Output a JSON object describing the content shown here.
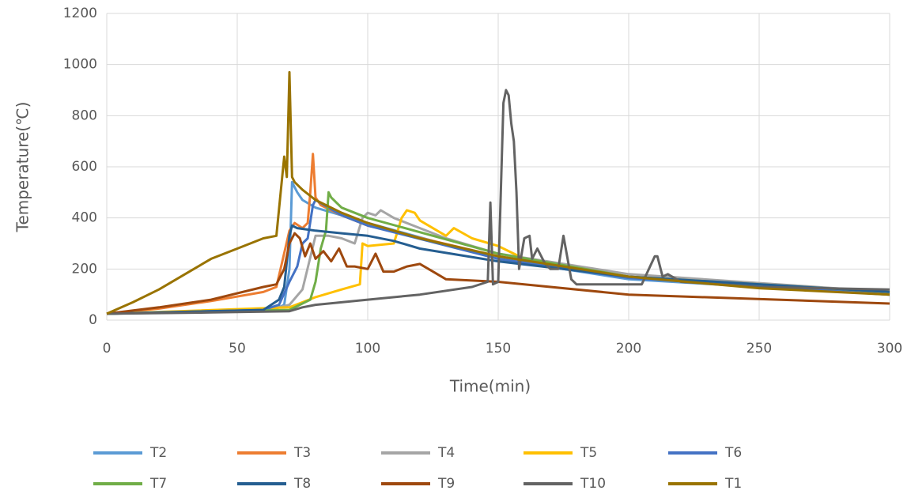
{
  "chart_data": {
    "type": "line",
    "x_label": "Time(min)",
    "y_label": "Temperature(℃)",
    "xlim": [
      0,
      300
    ],
    "xticks": [
      0,
      50,
      100,
      150,
      200,
      250,
      300
    ],
    "ylim": [
      0,
      1200
    ],
    "yticks": [
      0,
      200,
      400,
      600,
      800,
      1000,
      1200
    ],
    "grid": true,
    "legend": "bottom",
    "series": [
      {
        "name": "T2",
        "color": "#5b9bd5",
        "x": [
          0,
          50,
          65,
          68,
          70,
          71,
          73,
          75,
          80,
          100,
          150,
          200,
          300
        ],
        "values": [
          25,
          35,
          45,
          60,
          200,
          540,
          500,
          470,
          440,
          380,
          240,
          160,
          100
        ]
      },
      {
        "name": "T3",
        "color": "#ed7d31",
        "x": [
          0,
          20,
          40,
          60,
          65,
          70,
          72,
          75,
          77,
          78,
          79,
          80,
          82,
          90,
          100,
          150,
          200,
          300
        ],
        "values": [
          25,
          45,
          75,
          110,
          130,
          350,
          380,
          360,
          380,
          500,
          650,
          480,
          450,
          410,
          370,
          250,
          170,
          105
        ]
      },
      {
        "name": "T4",
        "color": "#a5a5a5",
        "x": [
          0,
          60,
          70,
          75,
          80,
          85,
          90,
          95,
          98,
          100,
          103,
          105,
          110,
          120,
          130,
          150,
          200,
          300
        ],
        "values": [
          25,
          35,
          60,
          120,
          330,
          330,
          320,
          300,
          400,
          420,
          410,
          430,
          400,
          360,
          320,
          260,
          180,
          110
        ]
      },
      {
        "name": "T5",
        "color": "#ffc000",
        "x": [
          0,
          70,
          75,
          80,
          90,
          97,
          98,
          100,
          110,
          113,
          115,
          118,
          120,
          130,
          133,
          140,
          150,
          160,
          200,
          300
        ],
        "values": [
          25,
          50,
          70,
          90,
          120,
          140,
          300,
          290,
          300,
          400,
          430,
          420,
          390,
          330,
          360,
          320,
          290,
          240,
          170,
          105
        ]
      },
      {
        "name": "T6",
        "color": "#4472c4",
        "x": [
          0,
          60,
          66,
          70,
          73,
          75,
          77,
          79,
          80,
          90,
          100,
          150,
          200,
          300
        ],
        "values": [
          25,
          40,
          60,
          150,
          210,
          300,
          320,
          450,
          470,
          410,
          370,
          240,
          165,
          100
        ]
      },
      {
        "name": "T7",
        "color": "#70ad47",
        "x": [
          0,
          70,
          78,
          80,
          82,
          84,
          85,
          86,
          88,
          90,
          100,
          150,
          200,
          300
        ],
        "values": [
          25,
          40,
          80,
          150,
          280,
          350,
          500,
          480,
          460,
          440,
          400,
          260,
          170,
          110
        ]
      },
      {
        "name": "T8",
        "color": "#255e91",
        "x": [
          0,
          60,
          66,
          68,
          70,
          71,
          73,
          80,
          90,
          100,
          110,
          120,
          150,
          200,
          300
        ],
        "values": [
          25,
          40,
          80,
          130,
          330,
          370,
          360,
          350,
          340,
          330,
          310,
          280,
          230,
          170,
          110
        ]
      },
      {
        "name": "T9",
        "color": "#9e480e",
        "x": [
          0,
          20,
          40,
          60,
          65,
          68,
          70,
          72,
          74,
          76,
          78,
          80,
          83,
          86,
          89,
          92,
          95,
          100,
          103,
          106,
          110,
          115,
          120,
          125,
          130,
          150,
          200,
          300
        ],
        "values": [
          25,
          50,
          80,
          130,
          140,
          200,
          300,
          340,
          320,
          250,
          300,
          240,
          270,
          230,
          280,
          210,
          210,
          200,
          260,
          190,
          190,
          210,
          220,
          190,
          160,
          150,
          100,
          65
        ]
      },
      {
        "name": "T10",
        "color": "#636363",
        "x": [
          0,
          40,
          70,
          75,
          80,
          90,
          100,
          120,
          140,
          146,
          147,
          148,
          150,
          152,
          153,
          154,
          155,
          156,
          157,
          158,
          160,
          162,
          163,
          165,
          168,
          170,
          173,
          175,
          178,
          180,
          190,
          200,
          205,
          210,
          211,
          213,
          215,
          220,
          250,
          300
        ],
        "values": [
          25,
          30,
          35,
          50,
          60,
          70,
          80,
          100,
          130,
          150,
          460,
          140,
          150,
          850,
          900,
          880,
          770,
          700,
          500,
          200,
          320,
          330,
          240,
          280,
          220,
          200,
          200,
          330,
          160,
          140,
          140,
          140,
          140,
          250,
          250,
          170,
          180,
          150,
          130,
          120
        ]
      },
      {
        "name": "T1",
        "color": "#997300",
        "x": [
          0,
          10,
          20,
          30,
          40,
          50,
          60,
          65,
          68,
          69,
          70,
          71,
          72,
          75,
          80,
          90,
          100,
          120,
          150,
          200,
          250,
          300
        ],
        "values": [
          25,
          70,
          120,
          180,
          240,
          280,
          320,
          330,
          640,
          560,
          970,
          560,
          540,
          510,
          470,
          420,
          380,
          320,
          250,
          170,
          125,
          100
        ]
      }
    ]
  }
}
